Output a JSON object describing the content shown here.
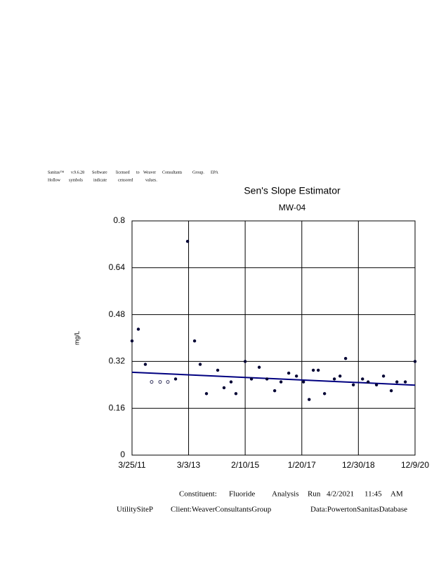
{
  "header": {
    "line1": [
      "Sanitas™",
      "v.9.6.28",
      "Software",
      "licensed",
      "to",
      "Weaver",
      "Consultants",
      "Group.",
      "EPA"
    ],
    "line2": [
      "Hollow",
      "symbols",
      "indicate",
      "censored",
      "values."
    ]
  },
  "chart_data": {
    "type": "scatter",
    "title": "Sen's Slope Estimator",
    "subtitle": "MW-04",
    "y_label": "mg/L",
    "x": [
      "2011-03-25",
      "2011-06-12",
      "2011-09-08",
      "2011-11-26",
      "2012-03-11",
      "2012-06-16",
      "2012-09-21",
      "2013-02-18",
      "2013-05-17",
      "2013-07-26",
      "2013-10-13",
      "2014-03-03",
      "2014-05-21",
      "2014-08-17",
      "2014-10-17",
      "2015-02-10",
      "2015-04-30",
      "2015-08-05",
      "2015-11-10",
      "2016-02-15",
      "2016-05-04",
      "2016-08-09",
      "2016-11-14",
      "2017-02-10",
      "2017-04-22",
      "2017-06-13",
      "2017-08-14",
      "2017-11-01",
      "2018-03-04",
      "2018-05-14",
      "2018-07-23",
      "2018-10-28",
      "2019-02-20",
      "2019-05-01",
      "2019-08-14",
      "2019-11-10",
      "2020-02-15",
      "2020-04-26",
      "2020-08-09",
      "2020-12-09"
    ],
    "values": [
      0.39,
      0.43,
      0.31,
      0.25,
      0.25,
      0.25,
      0.26,
      0.73,
      0.39,
      0.31,
      0.21,
      0.29,
      0.23,
      0.25,
      0.21,
      0.32,
      0.26,
      0.3,
      0.26,
      0.22,
      0.25,
      0.28,
      0.27,
      0.25,
      0.19,
      0.29,
      0.29,
      0.21,
      0.26,
      0.27,
      0.33,
      0.24,
      0.26,
      0.25,
      0.24,
      0.27,
      0.22,
      0.25,
      0.25,
      0.32
    ],
    "censored": [
      false,
      false,
      false,
      true,
      true,
      true,
      false,
      false,
      false,
      false,
      false,
      false,
      false,
      false,
      false,
      false,
      false,
      false,
      false,
      false,
      false,
      false,
      false,
      false,
      false,
      false,
      false,
      false,
      false,
      false,
      false,
      false,
      false,
      false,
      false,
      false,
      false,
      false,
      false,
      false
    ],
    "color": "#000033",
    "trend": {
      "x": [
        "2011-03-25",
        "2020-12-09"
      ],
      "values": [
        0.283,
        0.239
      ],
      "color": "#000080"
    },
    "xlim": [
      "2011-03-25",
      "2020-12-09"
    ],
    "xticks": [
      {
        "value": "2011-03-25",
        "label": "3/25/11"
      },
      {
        "value": "2013-03-03",
        "label": "3/3/13"
      },
      {
        "value": "2015-02-10",
        "label": "2/10/15"
      },
      {
        "value": "2017-01-20",
        "label": "1/20/17"
      },
      {
        "value": "2018-12-30",
        "label": "12/30/18"
      },
      {
        "value": "2020-12-09",
        "label": "12/9/20"
      }
    ],
    "ylim": [
      0,
      0.8
    ],
    "yticks": [
      0,
      0.16,
      0.32,
      0.48,
      0.64,
      0.8
    ],
    "grid": true
  },
  "footer": {
    "line1": [
      "Constituent:",
      "Fluoride",
      "Analysis",
      "Run",
      "4/2/2021",
      "11:45",
      "AM"
    ],
    "line2": [
      "UtilitySiteP",
      "Client:WeaverConsultantsGroup",
      "Data:PowertonSanitasDatabase"
    ]
  }
}
